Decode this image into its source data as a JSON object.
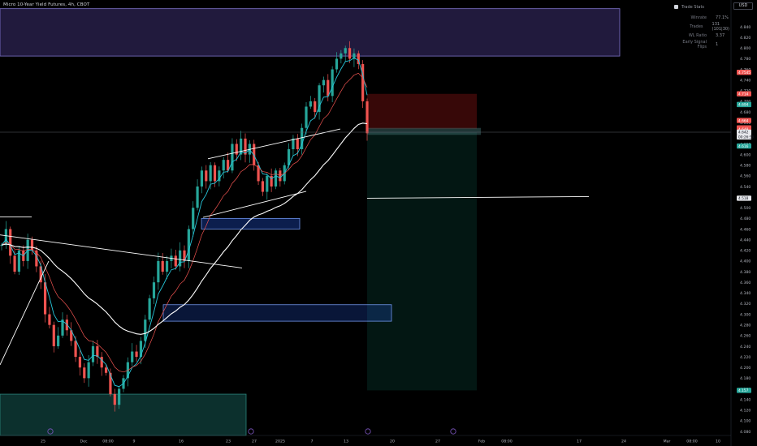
{
  "header": {
    "symbol_title": "Micro 10-Year Yield Futures, 4h, CBOT"
  },
  "currency_button": "USD",
  "trade_stats": {
    "title": "Trade Stats",
    "rows": [
      {
        "label": "Winrate",
        "value": "77.1%"
      },
      {
        "label": "Trades",
        "value": "131 (101|30)"
      },
      {
        "label": "WL Ratio",
        "value": "3.37"
      },
      {
        "label": "Early Signal Flips",
        "value": "1"
      }
    ]
  },
  "colors": {
    "background": "#000000",
    "candle_up": "#26a69a",
    "candle_down": "#ef5350",
    "ema_fast": "#26c6da",
    "ema_slow": "#ffffff",
    "zone_purple": "#5e4bb0",
    "zone_blue": "#2962ff",
    "zone_teal": "#1b6b63",
    "stop_zone": "#b71c1c",
    "target_zone": "#0b5a4a"
  },
  "chart_data": {
    "type": "candlestick",
    "title": "Micro 10-Year Yield Futures, 4h, CBOT",
    "price_axis": {
      "range": [
        4.07,
        4.88
      ],
      "ticks": [
        "4.840",
        "4.820",
        "4.800",
        "4.780",
        "4.760",
        "4.740",
        "4.720",
        "4.700",
        "4.680",
        "4.660",
        "4.640",
        "4.620",
        "4.600",
        "4.580",
        "4.560",
        "4.540",
        "4.520",
        "4.500",
        "4.480",
        "4.460",
        "4.440",
        "4.420",
        "4.400",
        "4.380",
        "4.360",
        "4.340",
        "4.320",
        "4.300",
        "4.280",
        "4.260",
        "4.240",
        "4.220",
        "4.200",
        "4.180",
        "4.160",
        "4.140",
        "4.120",
        "4.100",
        "4.080"
      ]
    },
    "time_axis": {
      "ticks": [
        "25",
        "Dec",
        "08:00",
        "9",
        "16",
        "23",
        "27",
        "2025",
        "7",
        "13",
        "20",
        "27",
        "Feb",
        "08:00",
        "17",
        "24",
        "Mar",
        "08:00",
        "10"
      ]
    },
    "price_tags": [
      {
        "label": "4.7545",
        "value": 4.7545,
        "color": "#ef5350"
      },
      {
        "label": "4.714",
        "value": 4.714,
        "color": "#ef5350"
      },
      {
        "label": "4.694",
        "value": 4.694,
        "color": "#26a69a"
      },
      {
        "label": "4.664",
        "value": 4.664,
        "color": "#ef5350"
      },
      {
        "label": "4.650",
        "value": 4.65,
        "color": "#ef5350"
      },
      {
        "label": "4.648",
        "value": 4.648,
        "color": "#ef5350"
      },
      {
        "label": "4.642",
        "value": 4.642,
        "color": "#ffffff"
      },
      {
        "label": "00:26:59",
        "value": 4.633,
        "color": "#ffffff"
      },
      {
        "label": "4.616",
        "value": 4.616,
        "color": "#26a69a"
      },
      {
        "label": "4.518",
        "value": 4.518,
        "color": "#ffffff"
      },
      {
        "label": "4.157",
        "value": 4.157,
        "color": "#26a69a"
      }
    ],
    "last_price": 4.642,
    "price_path": [
      4.43,
      4.46,
      4.41,
      4.38,
      4.42,
      4.4,
      4.44,
      4.42,
      4.39,
      4.36,
      4.3,
      4.28,
      4.24,
      4.26,
      4.29,
      4.27,
      4.25,
      4.22,
      4.2,
      4.18,
      4.21,
      4.24,
      4.22,
      4.2,
      4.19,
      4.15,
      4.13,
      4.16,
      4.18,
      4.21,
      4.23,
      4.22,
      4.25,
      4.29,
      4.33,
      4.36,
      4.4,
      4.38,
      4.4,
      4.41,
      4.39,
      4.42,
      4.4,
      4.46,
      4.5,
      4.54,
      4.57,
      4.55,
      4.58,
      4.55,
      4.57,
      4.59,
      4.57,
      4.62,
      4.6,
      4.63,
      4.6,
      4.62,
      4.58,
      4.55,
      4.53,
      4.56,
      4.54,
      4.57,
      4.55,
      4.58,
      4.61,
      4.63,
      4.61,
      4.65,
      4.69,
      4.7,
      4.68,
      4.73,
      4.74,
      4.71,
      4.76,
      4.78,
      4.79,
      4.8,
      4.78,
      4.79,
      4.77,
      4.7,
      4.64
    ],
    "zones": [
      {
        "name": "supply-zone-top",
        "price_top": 4.874,
        "price_bottom": 4.785
      },
      {
        "name": "stop-loss-zone",
        "price_top": 4.714,
        "price_bottom": 4.648
      },
      {
        "name": "target-zone",
        "price_top": 4.642,
        "price_bottom": 4.157
      },
      {
        "name": "demand-zone-upper",
        "price_top": 4.48,
        "price_bottom": 4.46
      },
      {
        "name": "demand-zone-lower",
        "price_top": 4.318,
        "price_bottom": 4.287
      },
      {
        "name": "demand-zone-bottom",
        "price_top": 4.15,
        "price_bottom": 4.066
      }
    ]
  }
}
